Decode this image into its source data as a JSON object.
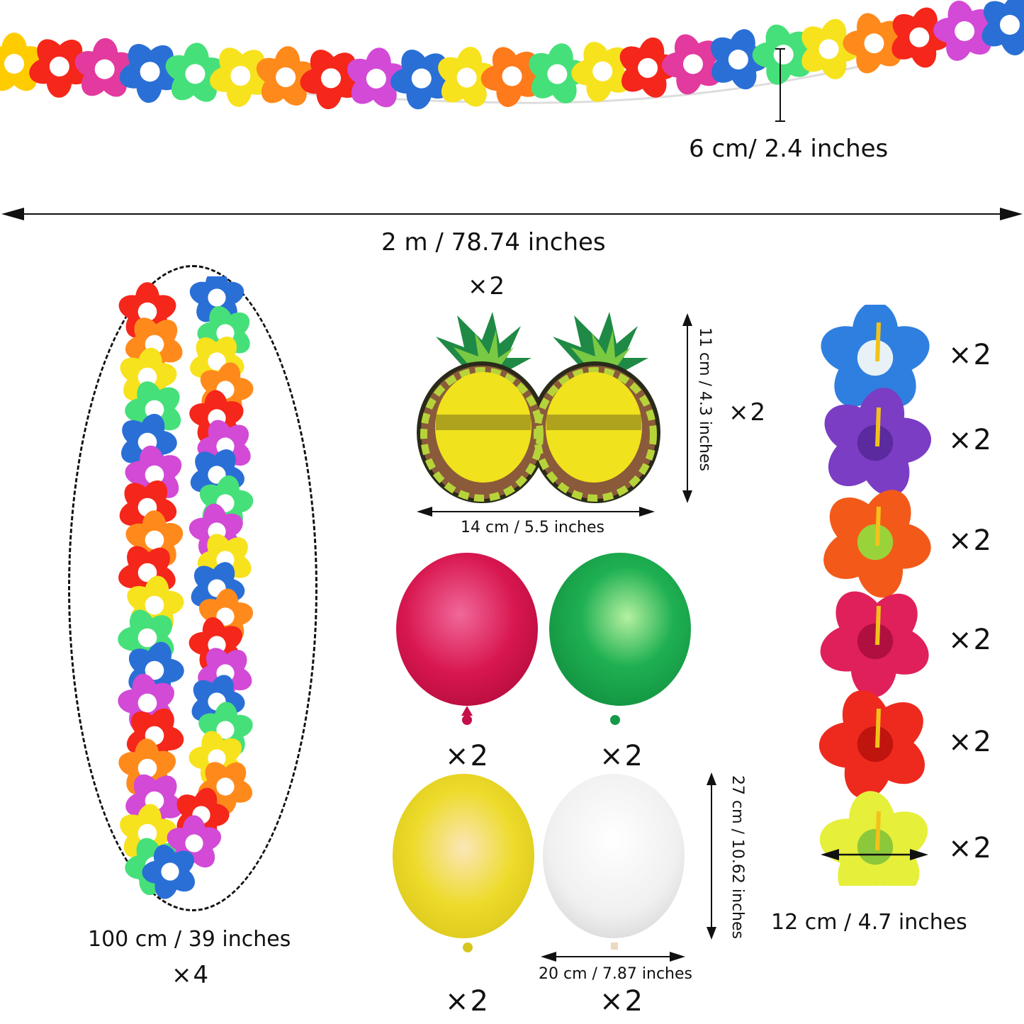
{
  "garland": {
    "width_label": "6 cm/ 2.4 inches",
    "length_label": "2 m / 78.74 inches",
    "flower_colors": [
      "#ffcc00",
      "#f5261a",
      "#e23a9e",
      "#2a6fd6",
      "#46e07a",
      "#f7e21e",
      "#ff8a1c",
      "#f5261a",
      "#d24ad6",
      "#2a6fd6",
      "#f7e21e",
      "#ff7a1a",
      "#46e07a",
      "#f7e21e",
      "#f5261a",
      "#e23a9e",
      "#2a6fd6",
      "#46e07a",
      "#f7e21e",
      "#ff8a1c",
      "#f5261a",
      "#d24ad6",
      "#2a6fd6"
    ]
  },
  "lei": {
    "size_label": "100 cm / 39 inches",
    "quantity": "×4",
    "left_colors": [
      "#f5261a",
      "#ff8a1c",
      "#f7e21e",
      "#46e07a",
      "#2a6fd6",
      "#d24ad6",
      "#f5261a",
      "#ff8a1c",
      "#f5261a",
      "#f7e21e",
      "#46e07a",
      "#2a6fd6",
      "#d24ad6",
      "#f5261a",
      "#ff8a1c",
      "#d24ad6",
      "#f7e21e",
      "#46e07a"
    ],
    "right_colors": [
      "#2a6fd6",
      "#46e07a",
      "#f7e21e",
      "#ff8a1c",
      "#f5261a",
      "#d24ad6",
      "#2a6fd6",
      "#46e07a",
      "#d24ad6",
      "#f7e21e",
      "#2a6fd6",
      "#ff8a1c",
      "#f5261a",
      "#d24ad6",
      "#2a6fd6",
      "#46e07a",
      "#f7e21e",
      "#ff8a1c",
      "#f5261a",
      "#d24ad6",
      "#2a6fd6"
    ]
  },
  "glasses": {
    "quantity_top": "×2",
    "height_label": "11 cm / 4.3 inches",
    "quantity_side": "×2",
    "width_label": "14 cm / 5.5 inches"
  },
  "balloons": {
    "items": [
      {
        "name": "red",
        "color": "#d8174f",
        "quantity": "×2"
      },
      {
        "name": "green",
        "color": "#1fb052",
        "quantity": "×2"
      },
      {
        "name": "yellow",
        "color": "#eddb2a",
        "quantity": "×2"
      },
      {
        "name": "white",
        "color": "#f2f2f2",
        "quantity": "×2"
      }
    ],
    "height_label": "27 cm / 10.62 inches",
    "width_label": "20 cm / 7.87 inches"
  },
  "hibiscus": {
    "items": [
      {
        "name": "blue-white",
        "color": "#2f7fe0",
        "center": "#e8f2f6",
        "quantity": "×2"
      },
      {
        "name": "purple",
        "color": "#7a3dc4",
        "center": "#5a2a9e",
        "quantity": "×2"
      },
      {
        "name": "orange-yellow",
        "color": "#f35a1a",
        "center": "#9ad23a",
        "quantity": "×2"
      },
      {
        "name": "pink",
        "color": "#e0205a",
        "center": "#b01040",
        "quantity": "×2"
      },
      {
        "name": "red",
        "color": "#ee2a1e",
        "center": "#c0140e",
        "quantity": "×2"
      },
      {
        "name": "yellow-green",
        "color": "#e6ef3a",
        "center": "#8cc83a",
        "quantity": "×2"
      }
    ],
    "width_label": "12 cm / 4.7 inches"
  }
}
